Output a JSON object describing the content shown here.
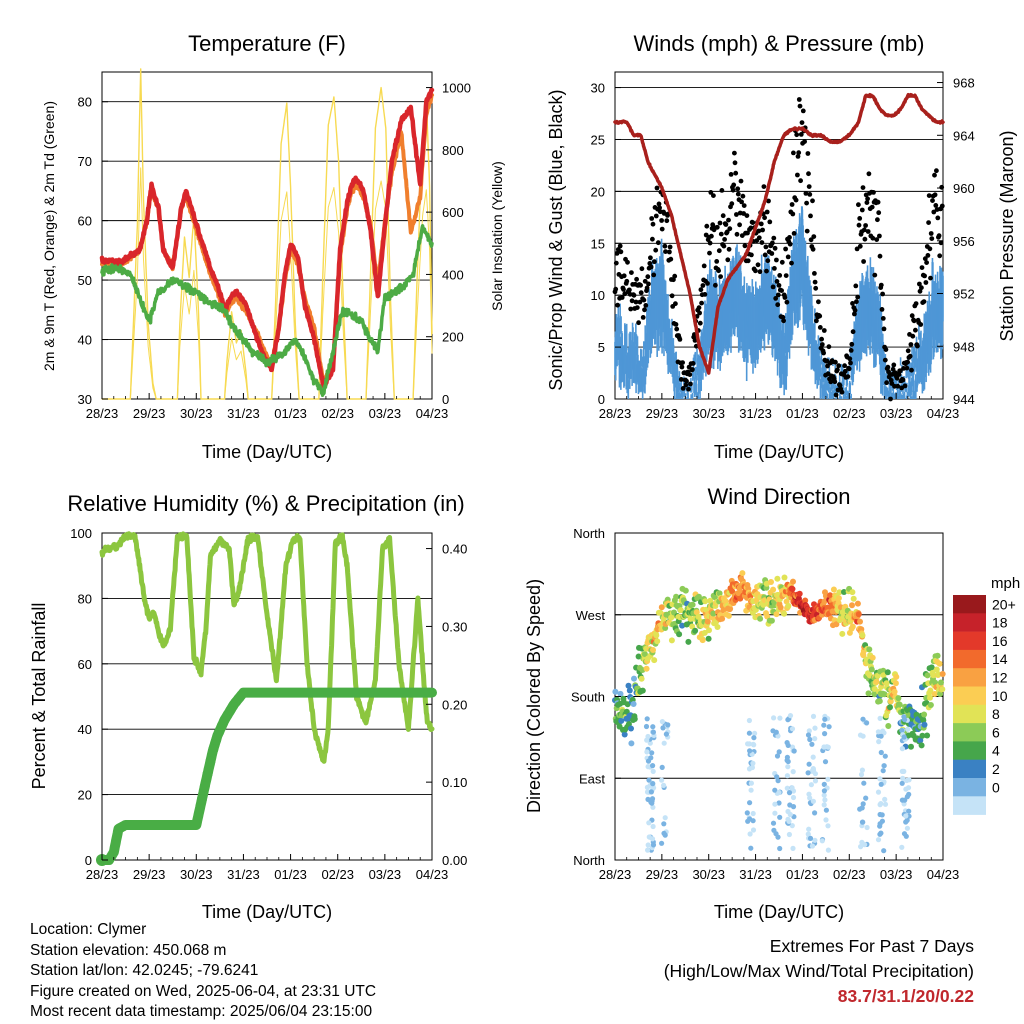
{
  "time_ticks": [
    "28/23",
    "29/23",
    "30/23",
    "31/23",
    "01/23",
    "02/23",
    "03/23",
    "04/23"
  ],
  "x_axis_label": "Time (Day/UTC)",
  "panels": {
    "temperature": {
      "title": "Temperature (F)",
      "left_label": "2m & 9m T (Red, Orange) & 2m Td (Green)",
      "right_label": "Solar Insolation (Yellow)",
      "left_ticks": [
        "30",
        "40",
        "50",
        "60",
        "70",
        "80"
      ],
      "right_ticks": [
        "0",
        "200",
        "400",
        "600",
        "800",
        "1000"
      ]
    },
    "winds": {
      "title": "Winds (mph) & Pressure (mb)",
      "left_label": "Sonic/Prop Wind & Gust (Blue, Black)",
      "right_label": "Station Pressure (Maroon)",
      "left_ticks": [
        "0",
        "5",
        "10",
        "15",
        "20",
        "25",
        "30"
      ],
      "right_ticks": [
        "944",
        "948",
        "952",
        "956",
        "960",
        "964",
        "968"
      ]
    },
    "humidity": {
      "title": "Relative Humidity (%) & Precipitation (in)",
      "left_label": "Percent & Total Rainfall",
      "left_ticks": [
        "0",
        "20",
        "40",
        "60",
        "80",
        "100"
      ],
      "right_ticks": [
        "0.00",
        "0.10",
        "0.20",
        "0.30",
        "0.40"
      ]
    },
    "direction": {
      "title": "Wind Direction",
      "left_label": "Direction (Colored By Speed)",
      "left_ticks": [
        "North",
        "East",
        "South",
        "West",
        "North"
      ],
      "colorbar_title": "mph",
      "colorbar_labels": [
        "20+",
        "18",
        "16",
        "14",
        "12",
        "10",
        "8",
        "6",
        "4",
        "2",
        "0"
      ],
      "colorbar_colors": [
        "#99191c",
        "#c6222a",
        "#e3392a",
        "#f26a2c",
        "#f9a142",
        "#fbcd53",
        "#e1e356",
        "#8ccb57",
        "#46a64b",
        "#3a81c3",
        "#7ab3e2",
        "#c5e3f7"
      ]
    }
  },
  "station": {
    "location": "Location: Clymer",
    "elevation": "Station elevation: 450.068 m",
    "latlon": "Station lat/lon: 42.0245; -79.6241",
    "created": "Figure created on Wed, 2025-06-04, at 23:31 UTC",
    "recent": "Most recent data timestamp: 2025/06/04 23:15:00"
  },
  "extremes": {
    "title": "Extremes For Past 7 Days",
    "subtitle": "(High/Low/Max Wind/Total Precipitation)",
    "values": "83.7/31.1/20/0.22"
  },
  "chart_data": [
    {
      "type": "line",
      "title": "Temperature (F)",
      "xlabel": "Time (Day/UTC)",
      "ylabel": "2m & 9m T (Red, Orange) & 2m Td (Green)",
      "y2label": "Solar Insolation (Yellow)",
      "xlim": [
        0,
        7
      ],
      "ylim": [
        30,
        85
      ],
      "y2lim": [
        0,
        1050
      ],
      "x_ticks": [
        "28/23",
        "29/23",
        "30/23",
        "31/23",
        "01/23",
        "02/23",
        "03/23",
        "04/23"
      ],
      "series": [
        {
          "axis": "left",
          "color": "#d9262b",
          "x": [
            0,
            0.4,
            0.8,
            0.95,
            1.05,
            1.2,
            1.3,
            1.5,
            1.68,
            1.78,
            1.9,
            2.1,
            2.3,
            2.5,
            2.62,
            2.72,
            2.85,
            3.05,
            3.3,
            3.45,
            3.6,
            3.75,
            3.88,
            4.0,
            4.15,
            4.3,
            4.5,
            4.7,
            4.9,
            5.05,
            5.2,
            5.3,
            5.4,
            5.55,
            5.7,
            5.85,
            6.0,
            6.15,
            6.35,
            6.55,
            6.75,
            6.88,
            7.0
          ],
          "y": [
            53.5,
            53,
            55,
            60,
            66,
            62,
            55,
            52,
            62,
            65,
            62,
            57,
            52,
            48,
            45,
            47,
            48,
            46,
            40,
            37,
            35,
            42,
            51,
            56,
            54,
            46,
            40,
            32,
            35,
            55,
            63,
            66,
            67,
            65,
            58,
            47,
            59,
            70,
            77,
            79,
            66,
            80,
            82
          ]
        },
        {
          "axis": "left",
          "color": "#f07f2d",
          "x": [
            0,
            0.4,
            0.8,
            0.95,
            1.05,
            1.2,
            1.3,
            1.5,
            1.68,
            1.78,
            1.9,
            2.1,
            2.3,
            2.5,
            2.62,
            2.72,
            2.85,
            3.05,
            3.3,
            3.45,
            3.6,
            3.75,
            3.88,
            4.0,
            4.15,
            4.3,
            4.5,
            4.7,
            4.9,
            5.05,
            5.2,
            5.3,
            5.4,
            5.55,
            5.7,
            5.85,
            6.0,
            6.15,
            6.35,
            6.55,
            6.75,
            6.88,
            7.0
          ],
          "y": [
            53,
            52.5,
            55,
            60,
            65,
            62,
            55,
            52,
            62,
            64,
            61,
            56,
            51,
            47,
            44,
            46,
            47,
            45,
            41,
            38,
            36,
            42,
            50,
            55,
            53,
            47,
            42,
            33,
            36,
            54,
            62,
            65,
            66,
            64,
            59,
            49,
            60,
            68,
            75,
            58,
            64,
            78,
            81
          ]
        },
        {
          "axis": "left",
          "color": "#4dab45",
          "x": [
            0,
            0.3,
            0.6,
            0.8,
            1.0,
            1.2,
            1.5,
            1.75,
            2.0,
            2.3,
            2.6,
            2.8,
            3.0,
            3.2,
            3.5,
            3.7,
            3.9,
            4.1,
            4.3,
            4.5,
            4.7,
            4.9,
            5.1,
            5.3,
            5.5,
            5.7,
            5.85,
            6.0,
            6.2,
            6.4,
            6.6,
            6.8,
            7.0
          ],
          "y": [
            51.5,
            52,
            51,
            47,
            43,
            48,
            50,
            49,
            48,
            46,
            45,
            42,
            40,
            38,
            36,
            37,
            38,
            40,
            37,
            33,
            31,
            38,
            45,
            44,
            43,
            40,
            38,
            47,
            48,
            49,
            51,
            59,
            56
          ]
        },
        {
          "axis": "right",
          "color": "#f7da52",
          "x": [
            0,
            0.6,
            0.65,
            0.75,
            0.82,
            0.88,
            0.98,
            1.08,
            1.15,
            1.6,
            1.65,
            1.75,
            1.85,
            1.95,
            2.05,
            2.1,
            2.6,
            2.65,
            2.75,
            2.85,
            2.95,
            3.05,
            3.1,
            3.6,
            3.68,
            3.8,
            3.92,
            4.0,
            4.1,
            4.18,
            4.6,
            4.68,
            4.8,
            4.92,
            5.02,
            5.12,
            5.2,
            5.6,
            5.68,
            5.8,
            5.92,
            6.02,
            6.12,
            6.2,
            6.6,
            6.68,
            6.8,
            6.88,
            6.95,
            7.0
          ],
          "y": [
            0,
            0,
            180,
            560,
            1060,
            640,
            240,
            50,
            0,
            0,
            240,
            520,
            390,
            590,
            270,
            0,
            0,
            120,
            280,
            180,
            220,
            90,
            0,
            0,
            300,
            820,
            950,
            680,
            240,
            0,
            0,
            380,
            880,
            970,
            760,
            300,
            0,
            0,
            330,
            870,
            1000,
            870,
            320,
            0,
            0,
            370,
            840,
            960,
            680,
            210
          ]
        }
      ]
    },
    {
      "type": "scatter",
      "title": "Winds (mph) & Pressure (mb)",
      "xlabel": "Time (Day/UTC)",
      "ylabel": "Sonic/Prop Wind & Gust (Blue, Black)",
      "y2label": "Station Pressure (Maroon)",
      "xlim": [
        0,
        7
      ],
      "ylim": [
        0,
        31.5
      ],
      "y2lim": [
        944,
        968.8
      ],
      "x_ticks": [
        "28/23",
        "29/23",
        "30/23",
        "31/23",
        "01/23",
        "02/23",
        "03/23",
        "04/23"
      ],
      "series": [
        {
          "name": "Gust",
          "color": "#000000",
          "x": [
            0,
            0.3,
            0.6,
            0.8,
            1.0,
            1.2,
            1.4,
            1.6,
            1.8,
            2.0,
            2.2,
            2.4,
            2.6,
            2.8,
            3.0,
            3.2,
            3.4,
            3.6,
            3.8,
            4.0,
            4.2,
            4.4,
            4.6,
            4.8,
            5.0,
            5.2,
            5.4,
            5.6,
            5.8,
            6.0,
            6.2,
            6.4,
            6.6,
            6.8,
            7.0
          ],
          "y": [
            12,
            11,
            9,
            15,
            18,
            12,
            3,
            2,
            9,
            17,
            14,
            18,
            20,
            16,
            15,
            17,
            14,
            9,
            20,
            27,
            15,
            5,
            3,
            2,
            3,
            16,
            18,
            17,
            3,
            2,
            3,
            7,
            11,
            19,
            18
          ]
        },
        {
          "name": "Wind",
          "color": "#4f97d6",
          "x": [
            0,
            0.3,
            0.6,
            0.8,
            1.0,
            1.2,
            1.4,
            1.6,
            1.8,
            2.0,
            2.2,
            2.4,
            2.6,
            2.8,
            3.0,
            3.2,
            3.4,
            3.6,
            3.8,
            4.0,
            4.2,
            4.4,
            4.6,
            4.8,
            5.0,
            5.2,
            5.4,
            5.6,
            5.8,
            6.0,
            6.2,
            6.4,
            6.6,
            6.8,
            7.0
          ],
          "y": [
            7,
            5,
            3,
            11,
            13,
            6,
            1,
            0.5,
            3,
            11,
            9,
            11,
            13,
            9,
            9,
            12,
            10,
            5,
            13,
            17,
            8,
            2,
            1,
            1,
            1,
            9,
            11,
            10,
            1,
            1,
            1,
            3,
            6,
            11,
            10
          ]
        },
        {
          "name": "Pressure",
          "color": "#a8201c",
          "axis": "right",
          "x": [
            0,
            0.25,
            0.4,
            0.55,
            0.7,
            0.85,
            1.0,
            1.2,
            1.4,
            1.6,
            1.8,
            2.0,
            2.2,
            2.4,
            2.6,
            2.8,
            3.0,
            3.2,
            3.4,
            3.6,
            3.8,
            4.0,
            4.2,
            4.4,
            4.6,
            4.8,
            5.0,
            5.2,
            5.35,
            5.5,
            5.65,
            5.8,
            5.95,
            6.1,
            6.25,
            6.4,
            6.55,
            6.7,
            6.85,
            7.0
          ],
          "y": [
            965,
            965,
            964,
            964,
            962,
            961,
            960,
            958,
            955,
            952,
            948,
            946,
            951,
            953,
            954,
            955,
            957,
            959,
            962,
            964,
            964.5,
            964.5,
            964,
            964,
            963.5,
            963.5,
            964,
            965,
            967,
            967,
            966,
            965.5,
            965.5,
            966,
            967,
            967,
            966,
            965.5,
            965,
            965
          ]
        }
      ]
    },
    {
      "type": "line",
      "title": "Relative Humidity (%) & Precipitation (in)",
      "xlabel": "Time (Day/UTC)",
      "ylabel": "Percent & Total Rainfall",
      "xlim": [
        0,
        7
      ],
      "ylim": [
        0,
        100
      ],
      "y2lim": [
        0,
        0.42
      ],
      "x_ticks": [
        "28/23",
        "29/23",
        "30/23",
        "31/23",
        "01/23",
        "02/23",
        "03/23",
        "04/23"
      ],
      "series": [
        {
          "name": "Relative Humidity",
          "axis": "left",
          "color": "#8cc63f",
          "x": [
            0,
            0.1,
            0.3,
            0.5,
            0.7,
            0.8,
            0.9,
            1.0,
            1.1,
            1.2,
            1.3,
            1.45,
            1.6,
            1.8,
            1.95,
            2.1,
            2.2,
            2.3,
            2.5,
            2.7,
            2.8,
            2.9,
            3.1,
            3.3,
            3.5,
            3.7,
            3.9,
            4.05,
            4.2,
            4.35,
            4.5,
            4.7,
            4.8,
            4.95,
            5.1,
            5.2,
            5.4,
            5.6,
            5.8,
            5.95,
            6.1,
            6.3,
            6.5,
            6.7,
            6.8,
            6.9,
            7.0
          ],
          "y": [
            94,
            95,
            96,
            99,
            99,
            90,
            80,
            74,
            76,
            70,
            65,
            71,
            99,
            99,
            62,
            57,
            70,
            93,
            98,
            95,
            78,
            82,
            98,
            99,
            75,
            55,
            90,
            98,
            98,
            60,
            40,
            30,
            40,
            97,
            99,
            90,
            50,
            42,
            55,
            95,
            98,
            60,
            40,
            80,
            60,
            42,
            40
          ]
        },
        {
          "name": "Total Rainfall",
          "axis": "right",
          "color": "#49ad45",
          "x": [
            0,
            0.15,
            0.2,
            0.25,
            0.35,
            0.5,
            1.5,
            2.0,
            2.2,
            2.35,
            2.45,
            2.6,
            2.8,
            3.0,
            3.2,
            4.0,
            5.0,
            6.0,
            7.0
          ],
          "y": [
            0.0,
            0.0,
            0.005,
            0.01,
            0.04,
            0.045,
            0.045,
            0.045,
            0.1,
            0.14,
            0.16,
            0.18,
            0.2,
            0.215,
            0.215,
            0.215,
            0.215,
            0.215,
            0.215
          ]
        }
      ]
    },
    {
      "type": "scatter",
      "title": "Wind Direction",
      "xlabel": "Time (Day/UTC)",
      "ylabel": "Direction (Colored By Speed)",
      "xlim": [
        0,
        7
      ],
      "ylim": [
        0,
        360
      ],
      "x_ticks": [
        "28/23",
        "29/23",
        "30/23",
        "31/23",
        "01/23",
        "02/23",
        "03/23",
        "04/23"
      ],
      "y_ticks": [
        "North",
        "East",
        "South",
        "West",
        "North"
      ],
      "colorbar": {
        "title": "mph",
        "labels": [
          "20+",
          "18",
          "16",
          "14",
          "12",
          "10",
          "8",
          "6",
          "4",
          "2",
          "0"
        ]
      },
      "series": [
        {
          "name": "Wind direction",
          "x": [
            0,
            0.2,
            0.35,
            0.5,
            0.7,
            0.9,
            1.0,
            1.1,
            1.5,
            1.7,
            1.9,
            2.1,
            2.5,
            2.7,
            2.9,
            3.2,
            3.6,
            3.8,
            4.0,
            4.15,
            4.6,
            4.8,
            5.0,
            5.2,
            5.4,
            5.55,
            5.85,
            6.0,
            6.1,
            6.5,
            6.7,
            6.9,
            7.0
          ],
          "y": [
            155,
            155,
            160,
            200,
            230,
            250,
            265,
            270,
            275,
            270,
            262,
            272,
            290,
            300,
            285,
            285,
            290,
            295,
            280,
            270,
            280,
            275,
            270,
            266,
            210,
            200,
            180,
            190,
            150,
            140,
            185,
            205,
            200
          ],
          "speed": [
            6,
            7,
            5,
            8,
            11,
            13,
            12,
            10,
            8,
            9,
            12,
            11,
            15,
            16,
            14,
            10,
            12,
            17,
            20,
            19,
            16,
            12,
            11,
            17,
            9,
            10,
            10,
            12,
            7,
            6,
            9,
            12,
            11
          ]
        }
      ]
    }
  ]
}
